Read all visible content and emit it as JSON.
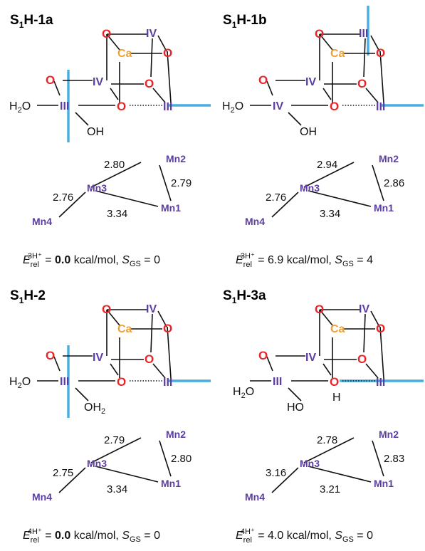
{
  "colors": {
    "oxygen": "#e8262a",
    "manganese": "#5b3ea0",
    "calcium": "#f0a030",
    "jahn_teller_axis": "#46aee0",
    "bond": "#111111"
  },
  "panels": [
    {
      "title_main": "S",
      "title_sub": "1",
      "title_rest": "H-1a",
      "cube": {
        "ca": "Ca",
        "mn_top": "IV",
        "mn_mid": "IV",
        "mn_right": "III",
        "mn_left": "III",
        "o": "O"
      },
      "ligands": {
        "left": "H",
        "left_sub": "2",
        "left_rest": "O",
        "bottom": "OH",
        "bottom_sub": "",
        "bottom_h": ""
      },
      "triangle": {
        "mn1": "Mn1",
        "mn2": "Mn2",
        "mn3": "Mn3",
        "mn4": "Mn4",
        "d_mn3_mn2": "2.80",
        "d_mn2_mn1": "2.79",
        "d_mn3_mn4": "2.76",
        "d_mn3_mn1": "3.34"
      },
      "energy": {
        "e": "E",
        "sub": "rel",
        "sup": "3H⁺",
        "eq": " = ",
        "value": "0.0",
        "value_bold": true,
        "unit": " kcal/mol, ",
        "s": "S",
        "s_sub": "GS",
        "s_eq": " = ",
        "s_val": "0"
      }
    },
    {
      "title_main": "S",
      "title_sub": "1",
      "title_rest": "H-1b",
      "cube": {
        "ca": "Ca",
        "mn_top": "III",
        "mn_mid": "IV",
        "mn_right": "III",
        "mn_left": "IV",
        "o": "O"
      },
      "ligands": {
        "left": "H",
        "left_sub": "2",
        "left_rest": "O",
        "bottom": "OH",
        "bottom_sub": "",
        "bottom_h": ""
      },
      "triangle": {
        "mn1": "Mn1",
        "mn2": "Mn2",
        "mn3": "Mn3",
        "mn4": "Mn4",
        "d_mn3_mn2": "2.94",
        "d_mn2_mn1": "2.86",
        "d_mn3_mn4": "2.76",
        "d_mn3_mn1": "3.34"
      },
      "energy": {
        "e": "E",
        "sub": "rel",
        "sup": "3H⁺",
        "eq": " = ",
        "value": "6.9",
        "value_bold": false,
        "unit": " kcal/mol, ",
        "s": "S",
        "s_sub": "GS",
        "s_eq": " = ",
        "s_val": "4"
      }
    },
    {
      "title_main": "S",
      "title_sub": "1",
      "title_rest": "H-2",
      "cube": {
        "ca": "Ca",
        "mn_top": "IV",
        "mn_mid": "IV",
        "mn_right": "III",
        "mn_left": "III",
        "o": "O"
      },
      "ligands": {
        "left": "H",
        "left_sub": "2",
        "left_rest": "O",
        "bottom": "OH",
        "bottom_sub": "2",
        "bottom_h": ""
      },
      "triangle": {
        "mn1": "Mn1",
        "mn2": "Mn2",
        "mn3": "Mn3",
        "mn4": "Mn4",
        "d_mn3_mn2": "2.79",
        "d_mn2_mn1": "2.80",
        "d_mn3_mn4": "2.75",
        "d_mn3_mn1": "3.34"
      },
      "energy": {
        "e": "E",
        "sub": "rel",
        "sup": "4H⁺",
        "eq": " = ",
        "value": "0.0",
        "value_bold": true,
        "unit": " kcal/mol, ",
        "s": "S",
        "s_sub": "GS",
        "s_eq": " = ",
        "s_val": "0"
      }
    },
    {
      "title_main": "S",
      "title_sub": "1",
      "title_rest": "H-3a",
      "cube": {
        "ca": "Ca",
        "mn_top": "IV",
        "mn_mid": "IV",
        "mn_right": "III",
        "mn_left": "III",
        "o": "O"
      },
      "ligands": {
        "left": "H",
        "left_sub": "2",
        "left_rest": "O",
        "bottom": "HO",
        "bottom_sub": "",
        "bottom_h": "H"
      },
      "triangle": {
        "mn1": "Mn1",
        "mn2": "Mn2",
        "mn3": "Mn3",
        "mn4": "Mn4",
        "d_mn3_mn2": "2.78",
        "d_mn2_mn1": "2.83",
        "d_mn3_mn4": "3.16",
        "d_mn3_mn1": "3.21"
      },
      "energy": {
        "e": "E",
        "sub": "rel",
        "sup": "4H⁺",
        "eq": " = ",
        "value": "4.0",
        "value_bold": false,
        "unit": " kcal/mol, ",
        "s": "S",
        "s_sub": "GS",
        "s_eq": " = ",
        "s_val": "0"
      }
    }
  ]
}
